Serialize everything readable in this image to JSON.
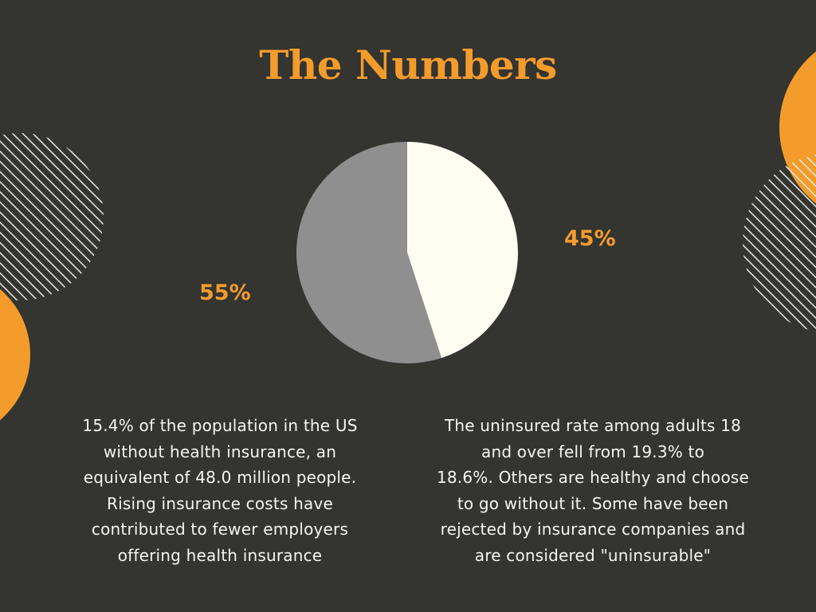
{
  "title": "The Numbers",
  "colors": {
    "background": "#343431",
    "accent": "#f39c2c",
    "slice_light": "#fdfdf2",
    "slice_gray": "#8f8f8f",
    "text": "#f5f5f0"
  },
  "chart_data": {
    "type": "pie",
    "title": "",
    "slices": [
      {
        "label": "45%",
        "value": 45,
        "color": "#fdfdf2"
      },
      {
        "label": "55%",
        "value": 55,
        "color": "#8f8f8f"
      }
    ]
  },
  "paragraphs": {
    "left": [
      "15.4% of the population in the US",
      "without health insurance, an",
      "equivalent of 48.0 million people.",
      "Rising insurance costs have",
      "contributed to fewer employers",
      "offering health insurance"
    ],
    "right": [
      "The uninsured rate among adults 18",
      "and over fell from 19.3% to",
      "18.6%. Others are healthy and choose",
      "to go without it. Some have been",
      "rejected by insurance companies and",
      "are considered \"uninsurable\""
    ]
  }
}
